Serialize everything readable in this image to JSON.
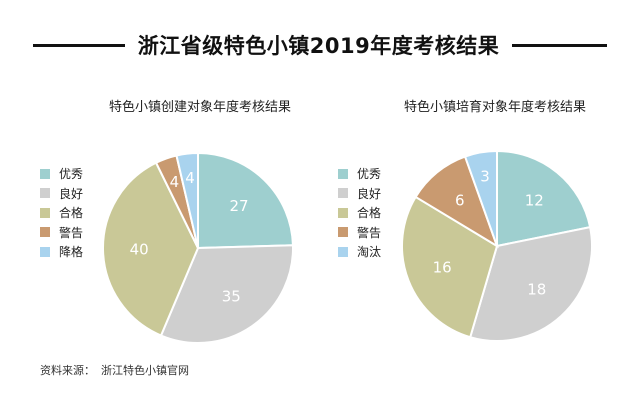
{
  "title": "浙江省级特色小镇2019年度考核结果",
  "source": {
    "label": "资料来源：",
    "text": "浙江特色小镇官网"
  },
  "colors": {
    "优秀": "#9ecfcf",
    "良好": "#cfcfcf",
    "合格": "#c9c897",
    "警告": "#c99a70",
    "降格": "#a9d3ee",
    "淘汰": "#a9d3ee"
  },
  "chart_data": [
    {
      "type": "pie",
      "title": "特色小镇创建对象年度考核结果",
      "categories": [
        "优秀",
        "良好",
        "合格",
        "警告",
        "降格"
      ],
      "values": [
        27,
        35,
        40,
        4,
        4
      ],
      "legend_position": "left"
    },
    {
      "type": "pie",
      "title": "特色小镇培育对象年度考核结果",
      "categories": [
        "优秀",
        "良好",
        "合格",
        "警告",
        "淘汰"
      ],
      "values": [
        12,
        18,
        16,
        6,
        3
      ],
      "legend_position": "left"
    }
  ]
}
